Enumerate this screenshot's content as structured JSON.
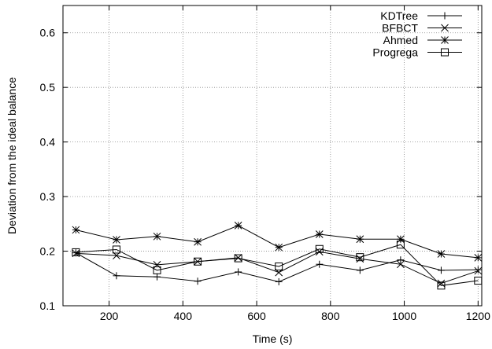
{
  "chart_data": {
    "type": "line",
    "xlabel": "Time (s)",
    "ylabel": "Deviation from the ideal balance",
    "xlim": [
      75,
      1210
    ],
    "ylim": [
      0.1,
      0.65
    ],
    "xticks": [
      200,
      400,
      600,
      800,
      1000,
      1200
    ],
    "yticks": [
      0.1,
      0.2,
      0.3,
      0.4,
      0.5,
      0.6
    ],
    "xtick_labels": [
      "200",
      "400",
      "600",
      "800",
      "1000",
      "1200"
    ],
    "ytick_labels": [
      "0.1",
      "0.2",
      "0.3",
      "0.4",
      "0.5",
      "0.6"
    ],
    "grid": true,
    "legend_position": "top-right",
    "x": [
      110,
      220,
      330,
      440,
      550,
      660,
      770,
      880,
      990,
      1100,
      1200
    ],
    "series": [
      {
        "name": "KDTree",
        "marker": "plus",
        "values": [
          0.197,
          0.155,
          0.153,
          0.145,
          0.162,
          0.144,
          0.176,
          0.165,
          0.184,
          0.165,
          0.166
        ]
      },
      {
        "name": "BFBCT",
        "marker": "cross",
        "values": [
          0.196,
          0.192,
          0.175,
          0.181,
          0.188,
          0.161,
          0.199,
          0.186,
          0.176,
          0.141,
          0.164
        ]
      },
      {
        "name": "Ahmed",
        "marker": "star",
        "values": [
          0.239,
          0.221,
          0.227,
          0.217,
          0.247,
          0.207,
          0.231,
          0.222,
          0.222,
          0.195,
          0.188
        ]
      },
      {
        "name": "Progrega",
        "marker": "square",
        "values": [
          0.198,
          0.203,
          0.165,
          0.181,
          0.187,
          0.172,
          0.204,
          0.189,
          0.212,
          0.137,
          0.146
        ]
      }
    ]
  }
}
